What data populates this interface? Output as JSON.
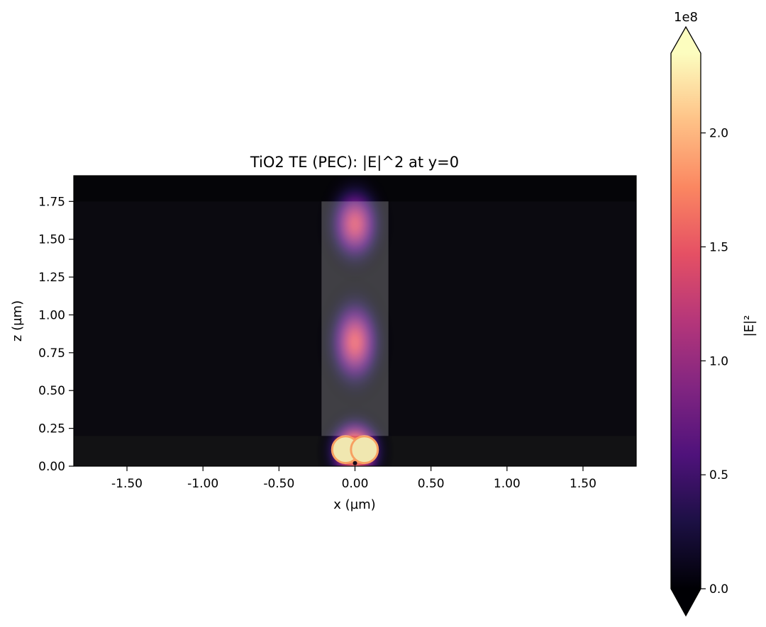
{
  "chart_data": {
    "type": "heatmap",
    "title": "TiO2 TE (PEC): |E|^2 at y=0",
    "xlabel": "x (µm)",
    "ylabel": "z (µm)",
    "xlim": [
      -1.85,
      1.85
    ],
    "ylim": [
      0.0,
      1.92
    ],
    "x_ticks": [
      -1.5,
      -1.0,
      -0.5,
      0.0,
      0.5,
      1.0,
      1.5
    ],
    "x_tick_labels": [
      "-1.50",
      "-1.00",
      "-0.50",
      "0.00",
      "0.50",
      "1.00",
      "1.50"
    ],
    "y_ticks": [
      0.0,
      0.25,
      0.5,
      0.75,
      1.0,
      1.25,
      1.5,
      1.75
    ],
    "y_tick_labels": [
      "0.00",
      "0.25",
      "0.50",
      "0.75",
      "1.00",
      "1.25",
      "1.50",
      "1.75"
    ],
    "colormap": "magma",
    "colormap_stops": [
      "#000004",
      "#1c1044",
      "#4f127b",
      "#812581",
      "#b5367a",
      "#e55064",
      "#fb8761",
      "#fec287",
      "#fcfdbf"
    ],
    "background_color": "#0b0a10",
    "colorbar": {
      "label": "|E|²",
      "range": [
        0.0,
        2.35
      ],
      "ticks": [
        0.0,
        0.5,
        1.0,
        1.5,
        2.0
      ],
      "tick_labels": [
        "0.0",
        "0.5",
        "1.0",
        "1.5",
        "2.0"
      ],
      "multiplier_label": "1e8",
      "extend": "both"
    },
    "regions": [
      {
        "name": "substrate",
        "x": [
          -1.85,
          1.85
        ],
        "z": [
          0.0,
          0.2
        ],
        "color": "#121214"
      },
      {
        "name": "cladding-top",
        "x": [
          -1.85,
          1.85
        ],
        "z": [
          1.75,
          1.92
        ],
        "color": "#050508"
      },
      {
        "name": "tio2-pillar",
        "x": [
          -0.22,
          0.22
        ],
        "z": [
          0.2,
          1.75
        ],
        "color": "#4a4a52"
      }
    ],
    "field_hotspots": [
      {
        "x": 0.0,
        "z": 0.1,
        "value": 2.35,
        "sx": 0.1,
        "sz": 0.12
      },
      {
        "x": 0.0,
        "z": 0.82,
        "value": 1.5,
        "sx": 0.1,
        "sz": 0.17
      },
      {
        "x": 0.0,
        "z": 1.6,
        "value": 1.4,
        "sx": 0.1,
        "sz": 0.15
      }
    ]
  }
}
